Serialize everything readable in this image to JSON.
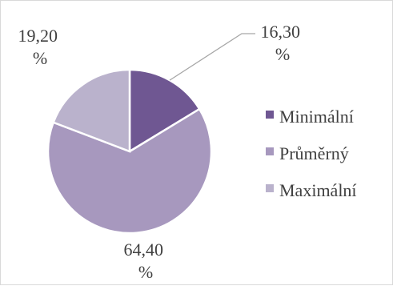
{
  "chart_data": {
    "type": "pie",
    "categories": [
      "Minimální",
      "Průměrný",
      "Maximální"
    ],
    "values": [
      16.3,
      64.4,
      19.2
    ],
    "data_labels": [
      [
        "16,30",
        "%"
      ],
      [
        "64,40",
        "%"
      ],
      [
        "19,20",
        "%"
      ]
    ],
    "legend": {
      "position": "right",
      "entries": [
        "Minimální",
        "Průměrný",
        "Maximální"
      ]
    },
    "colors": [
      "#6f5792",
      "#a798be",
      "#bab2cc"
    ],
    "slice_border_color": "#ffffff",
    "start_angle": "12 o'clock",
    "direction": "clockwise"
  }
}
